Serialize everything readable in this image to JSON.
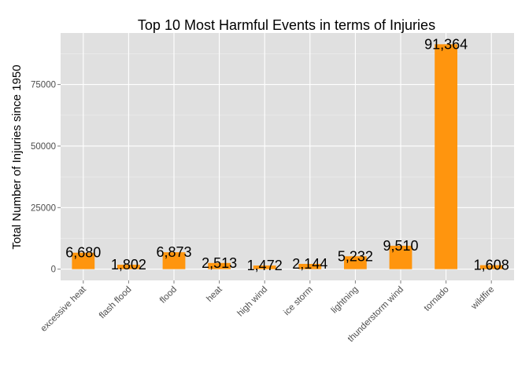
{
  "chart_data": {
    "type": "bar",
    "title": "Top 10 Most Harmful Events in terms of Injuries",
    "xlabel": "",
    "ylabel": "Total Number of Injuries since 1950",
    "categories": [
      "excessive heat",
      "flash flood",
      "flood",
      "heat",
      "high wind",
      "ice storm",
      "lightning",
      "thunderstorm wind",
      "tornado",
      "wildfire"
    ],
    "values": [
      6680,
      1802,
      6873,
      2513,
      1472,
      2144,
      5232,
      9510,
      91364,
      1608
    ],
    "data_labels": [
      "6,680",
      "1,802",
      "6,873",
      "2,513",
      "1,472",
      "2,144",
      "5,232",
      "9,510",
      "91,364",
      "1,608"
    ],
    "yticks": [
      0,
      25000,
      50000,
      75000
    ],
    "ytick_labels": [
      "0",
      "25000",
      "50000",
      "75000"
    ],
    "ylim": [
      -4568,
      95932
    ],
    "grid": true,
    "colors": {
      "bar": "#ff950e",
      "panel": "#e0e0e0",
      "grid": "#ffffff"
    }
  }
}
